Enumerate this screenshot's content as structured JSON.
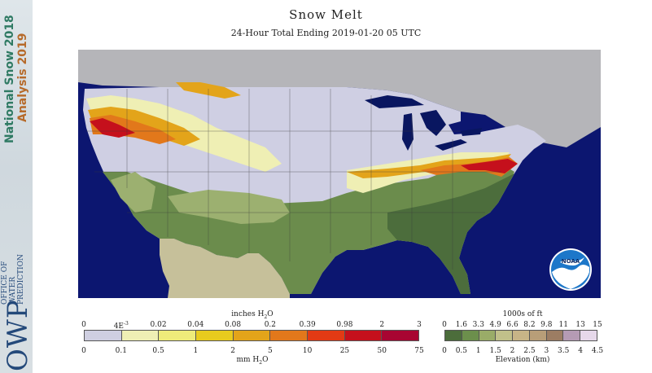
{
  "sidebar": {
    "title_line1": "National Snow 2018",
    "title_line2": "Analysis 2019",
    "org_line1": "OFFICE OF",
    "org_line2": "WATER",
    "org_line3": "PREDICTION",
    "org_abbrev": "OWP"
  },
  "header": {
    "title": "Snow Melt",
    "subtitle": "24-Hour Total Ending 2019-01-20 05 UTC"
  },
  "logo": {
    "text": "NOAA"
  },
  "melt_legend": {
    "top_unit": "inches H",
    "top_unit_sub": "2",
    "top_unit_tail": "O",
    "inch_ticks": [
      "0",
      "4E",
      "0.02",
      "0.04",
      "0.08",
      "0.2",
      "0.39",
      "0.98",
      "2",
      "3"
    ],
    "inch_ticks_exp": "-3",
    "mm_ticks": [
      "0",
      "0.1",
      "0.5",
      "1",
      "2",
      "5",
      "10",
      "25",
      "50",
      "75"
    ],
    "bottom_unit": "mm H",
    "bottom_unit_sub": "2",
    "bottom_unit_tail": "O",
    "colors": [
      "#cfcfe1",
      "#efefb4",
      "#eeeb7a",
      "#e8cb1e",
      "#e3a41a",
      "#e2781b",
      "#e23a14",
      "#c5101c",
      "#a80532"
    ]
  },
  "elevation_legend": {
    "top_unit": "1000s of ft",
    "ft_ticks": [
      "0",
      "1.6",
      "3.3",
      "4.9",
      "6.6",
      "8.2",
      "9.8",
      "11",
      "13",
      "15"
    ],
    "km_ticks": [
      "0",
      "0.5",
      "1",
      "1.5",
      "2",
      "2.5",
      "3",
      "3.5",
      "4",
      "4.5"
    ],
    "bottom_unit": "Elevation (km)",
    "colors": [
      "#4c6d3b",
      "#6c8f4c",
      "#9aac68",
      "#c1c08a",
      "#c7b487",
      "#b89e78",
      "#9c7d63",
      "#b59bb4",
      "#e6d8ea"
    ]
  },
  "map_colors": {
    "ocean": "#0c1670",
    "canada": "#b5b5b9",
    "us_snow": "#cfcfe3",
    "low_terrain": "#6b8c4c",
    "forest": "#4c6d3c",
    "plains": "#9cb070",
    "desert": "#c6c09a",
    "lakes": "#091660",
    "melt_low": "#efefb4",
    "melt_mid": "#e3a41a",
    "melt_high": "#e2781b",
    "melt_max": "#c5101c"
  }
}
